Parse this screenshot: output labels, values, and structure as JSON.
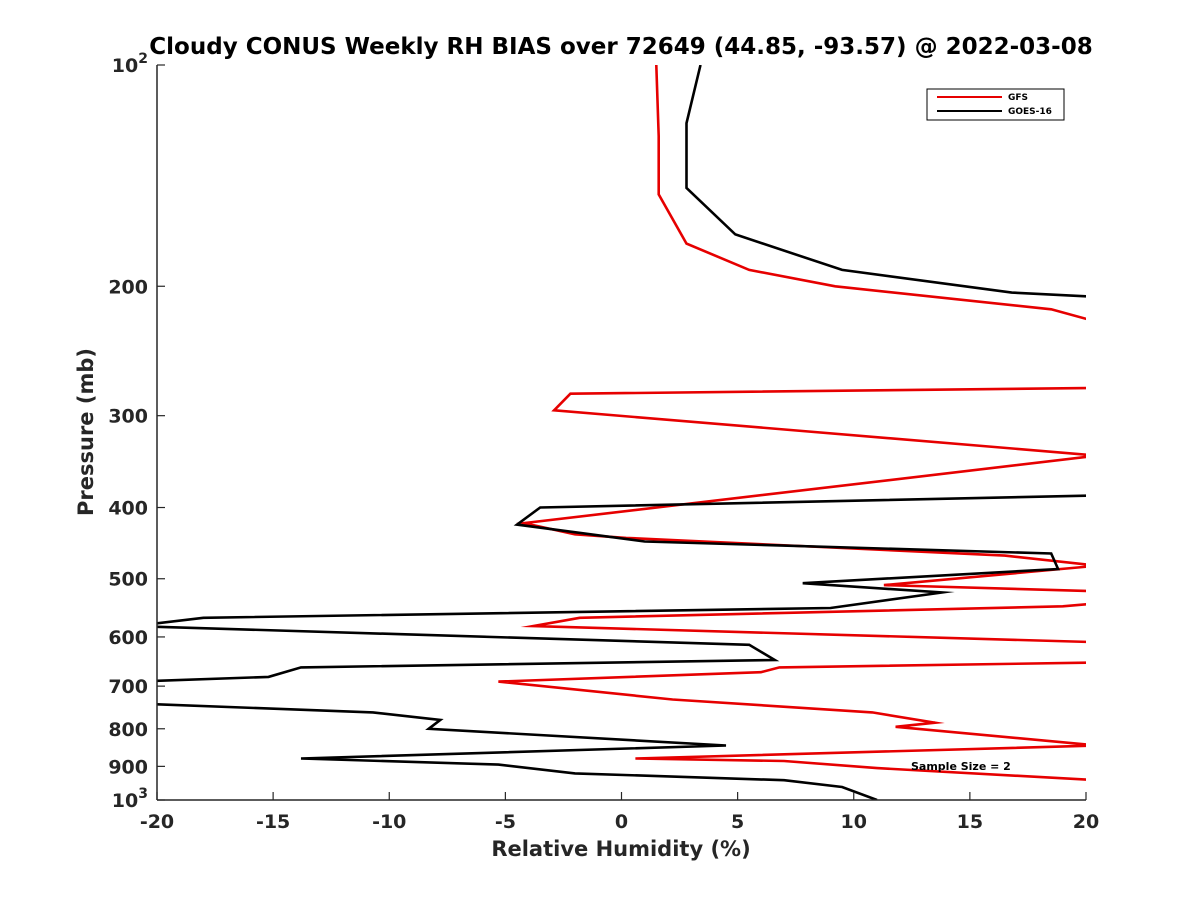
{
  "chart_data": {
    "type": "line",
    "title": "Cloudy CONUS Weekly RH BIAS over 72649 (44.85, -93.57) @ 2022-03-08",
    "xlabel": "Relative Humidity (%)",
    "ylabel": "Pressure (mb)",
    "xlim": [
      -20,
      20
    ],
    "ylim": [
      100,
      1000
    ],
    "y_scale": "log",
    "y_reversed": true,
    "grid": false,
    "legend_position": "top-right",
    "annotation": "Sample Size = 2",
    "x_ticks": [
      -20,
      -15,
      -10,
      -5,
      0,
      5,
      10,
      15,
      20
    ],
    "x_tick_labels": [
      "-20",
      "-15",
      "-10",
      "-5",
      "0",
      "5",
      "10",
      "15",
      "20"
    ],
    "y_ticks": [
      100,
      200,
      300,
      400,
      500,
      600,
      700,
      800,
      900,
      1000
    ],
    "y_tick_labels": [
      {
        "base": "10",
        "exp": "2"
      },
      {
        "base": "200",
        "exp": ""
      },
      {
        "base": "300",
        "exp": ""
      },
      {
        "base": "400",
        "exp": ""
      },
      {
        "base": "500",
        "exp": ""
      },
      {
        "base": "600",
        "exp": ""
      },
      {
        "base": "700",
        "exp": ""
      },
      {
        "base": "800",
        "exp": ""
      },
      {
        "base": "900",
        "exp": ""
      },
      {
        "base": "10",
        "exp": "3"
      }
    ],
    "series": [
      {
        "name": "GFS",
        "color": "#e60000",
        "points": [
          [
            1.5,
            100
          ],
          [
            1.6,
            125
          ],
          [
            1.6,
            150
          ],
          [
            2.8,
            175
          ],
          [
            5.5,
            190
          ],
          [
            9.2,
            200
          ],
          [
            18.5,
            215
          ],
          [
            20.8,
            225
          ],
          [
            20.5,
            275
          ],
          [
            -2.2,
            280
          ],
          [
            -2.9,
            295
          ],
          [
            20.5,
            340
          ],
          [
            -4.2,
            420
          ],
          [
            -2.0,
            435
          ],
          [
            0.2,
            440
          ],
          [
            16.5,
            465
          ],
          [
            20.5,
            480
          ],
          [
            11.3,
            510
          ],
          [
            20.5,
            520
          ],
          [
            20.5,
            540
          ],
          [
            19.0,
            545
          ],
          [
            -1.8,
            565
          ],
          [
            -3.8,
            580
          ],
          [
            20.5,
            610
          ],
          [
            20.5,
            650
          ],
          [
            6.8,
            660
          ],
          [
            6.0,
            670
          ],
          [
            -5.3,
            690
          ],
          [
            2.2,
            730
          ],
          [
            10.8,
            760
          ],
          [
            13.5,
            785
          ],
          [
            11.8,
            795
          ],
          [
            20.5,
            843
          ],
          [
            0.6,
            878
          ],
          [
            7.0,
            885
          ],
          [
            11.0,
            905
          ],
          [
            20.5,
            940
          ]
        ]
      },
      {
        "name": "GOES-16",
        "color": "#000000",
        "points": [
          [
            3.4,
            100
          ],
          [
            2.8,
            120
          ],
          [
            2.8,
            147
          ],
          [
            4.9,
            170
          ],
          [
            9.5,
            190
          ],
          [
            16.8,
            204
          ],
          [
            20.8,
            207
          ],
          [
            20.8,
            385
          ],
          [
            -3.5,
            400
          ],
          [
            -4.5,
            422
          ],
          [
            1.0,
            445
          ],
          [
            18.5,
            462
          ],
          [
            18.8,
            485
          ],
          [
            7.8,
            507
          ],
          [
            13.8,
            522
          ],
          [
            9.0,
            548
          ],
          [
            -18.0,
            565
          ],
          [
            -21.0,
            580
          ],
          [
            5.5,
            615
          ],
          [
            6.6,
            645
          ],
          [
            -13.8,
            660
          ],
          [
            -15.2,
            680
          ],
          [
            -21.0,
            690
          ],
          [
            -20.5,
            740
          ],
          [
            -10.7,
            760
          ],
          [
            -7.8,
            778
          ],
          [
            -8.3,
            800
          ],
          [
            4.5,
            843
          ],
          [
            -13.8,
            878
          ],
          [
            -5.3,
            895
          ],
          [
            -2.0,
            920
          ],
          [
            7.0,
            940
          ],
          [
            9.5,
            960
          ],
          [
            11.0,
            1000
          ]
        ]
      }
    ]
  }
}
